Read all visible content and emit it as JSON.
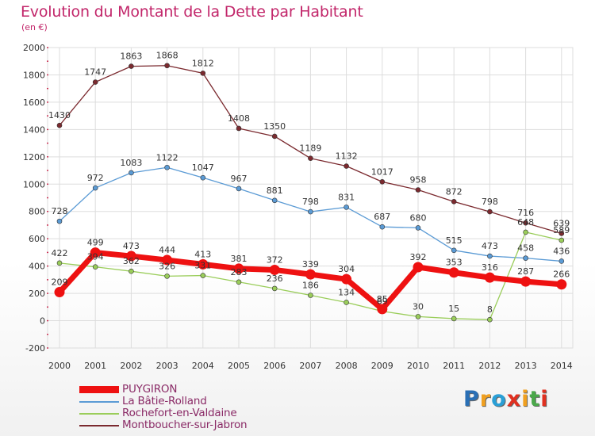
{
  "title": "Evolution du Montant de la Dette par Habitant",
  "subtitle": "(en €)",
  "chart_data": {
    "type": "line",
    "title": "Evolution du Montant de la Dette par Habitant",
    "subtitle": "(en €)",
    "xlabel": "",
    "ylabel": "",
    "x": [
      "2000",
      "2001",
      "2002",
      "2003",
      "2004",
      "2005",
      "2006",
      "2007",
      "2008",
      "2009",
      "2010",
      "2011",
      "2012",
      "2013",
      "2014"
    ],
    "ylim": [
      -200,
      2000
    ],
    "yticks": [
      "-200",
      "0",
      "200",
      "400",
      "600",
      "800",
      "1000",
      "1200",
      "1400",
      "1600",
      "1800",
      "2000"
    ],
    "grid": true,
    "legend_position": "bottom-left",
    "series": [
      {
        "name": "Montboucher-sur-Jabron",
        "color": "#7b2a2f",
        "values": [
          1430,
          1747,
          1863,
          1868,
          1812,
          1408,
          1350,
          1189,
          1132,
          1017,
          958,
          872,
          798,
          716,
          639
        ],
        "labels": [
          "1430",
          "1747",
          "1863",
          "1868",
          "1812",
          "1408",
          "1350",
          "1189",
          "1132",
          "1017",
          "958",
          "872",
          "798",
          "716",
          "639"
        ]
      },
      {
        "name": "La Bâtie-Rolland",
        "color": "#5b9bd5",
        "values": [
          728,
          972,
          1083,
          1122,
          1047,
          967,
          881,
          798,
          831,
          687,
          680,
          515,
          473,
          458,
          436
        ],
        "labels": [
          "728",
          "972",
          "1083",
          "1122",
          "1047",
          "967",
          "881",
          "798",
          "831",
          "687",
          "680",
          "515",
          "473",
          "458",
          "436"
        ]
      },
      {
        "name": "Rochefort-en-Valdaine",
        "color": "#9acd5a",
        "values": [
          422,
          394,
          362,
          326,
          331,
          283,
          236,
          186,
          134,
          69,
          30,
          15,
          8,
          648,
          589
        ],
        "labels": [
          "422",
          "394",
          "362",
          "326",
          "331",
          "283",
          "236",
          "186",
          "134",
          "69",
          "30",
          "15",
          "8",
          "648",
          "589"
        ]
      },
      {
        "name": "PUYGIRON",
        "color": "#ee1111",
        "values": [
          209,
          499,
          473,
          444,
          413,
          381,
          372,
          339,
          304,
          85,
          392,
          353,
          316,
          287,
          266
        ],
        "labels": [
          "209",
          "499",
          "473",
          "444",
          "413",
          "381",
          "372",
          "339",
          "304",
          "85",
          "392",
          "353",
          "316",
          "287",
          "266"
        ]
      }
    ]
  },
  "legend": [
    {
      "label": "PUYGIRON",
      "color": "#ee1111"
    },
    {
      "label": "La Bâtie-Rolland",
      "color": "#5b9bd5"
    },
    {
      "label": "Rochefort-en-Valdaine",
      "color": "#9acd5a"
    },
    {
      "label": "Montboucher-sur-Jabron",
      "color": "#7b2a2f"
    }
  ],
  "logo": {
    "letters": [
      "P",
      "r",
      "o",
      "x",
      "i",
      "t",
      "i"
    ],
    "colors": [
      "#2a6fb5",
      "#f0a020",
      "#2a9fd6",
      "#e03020",
      "#f0a020",
      "#4aa84a",
      "#e03020"
    ]
  }
}
